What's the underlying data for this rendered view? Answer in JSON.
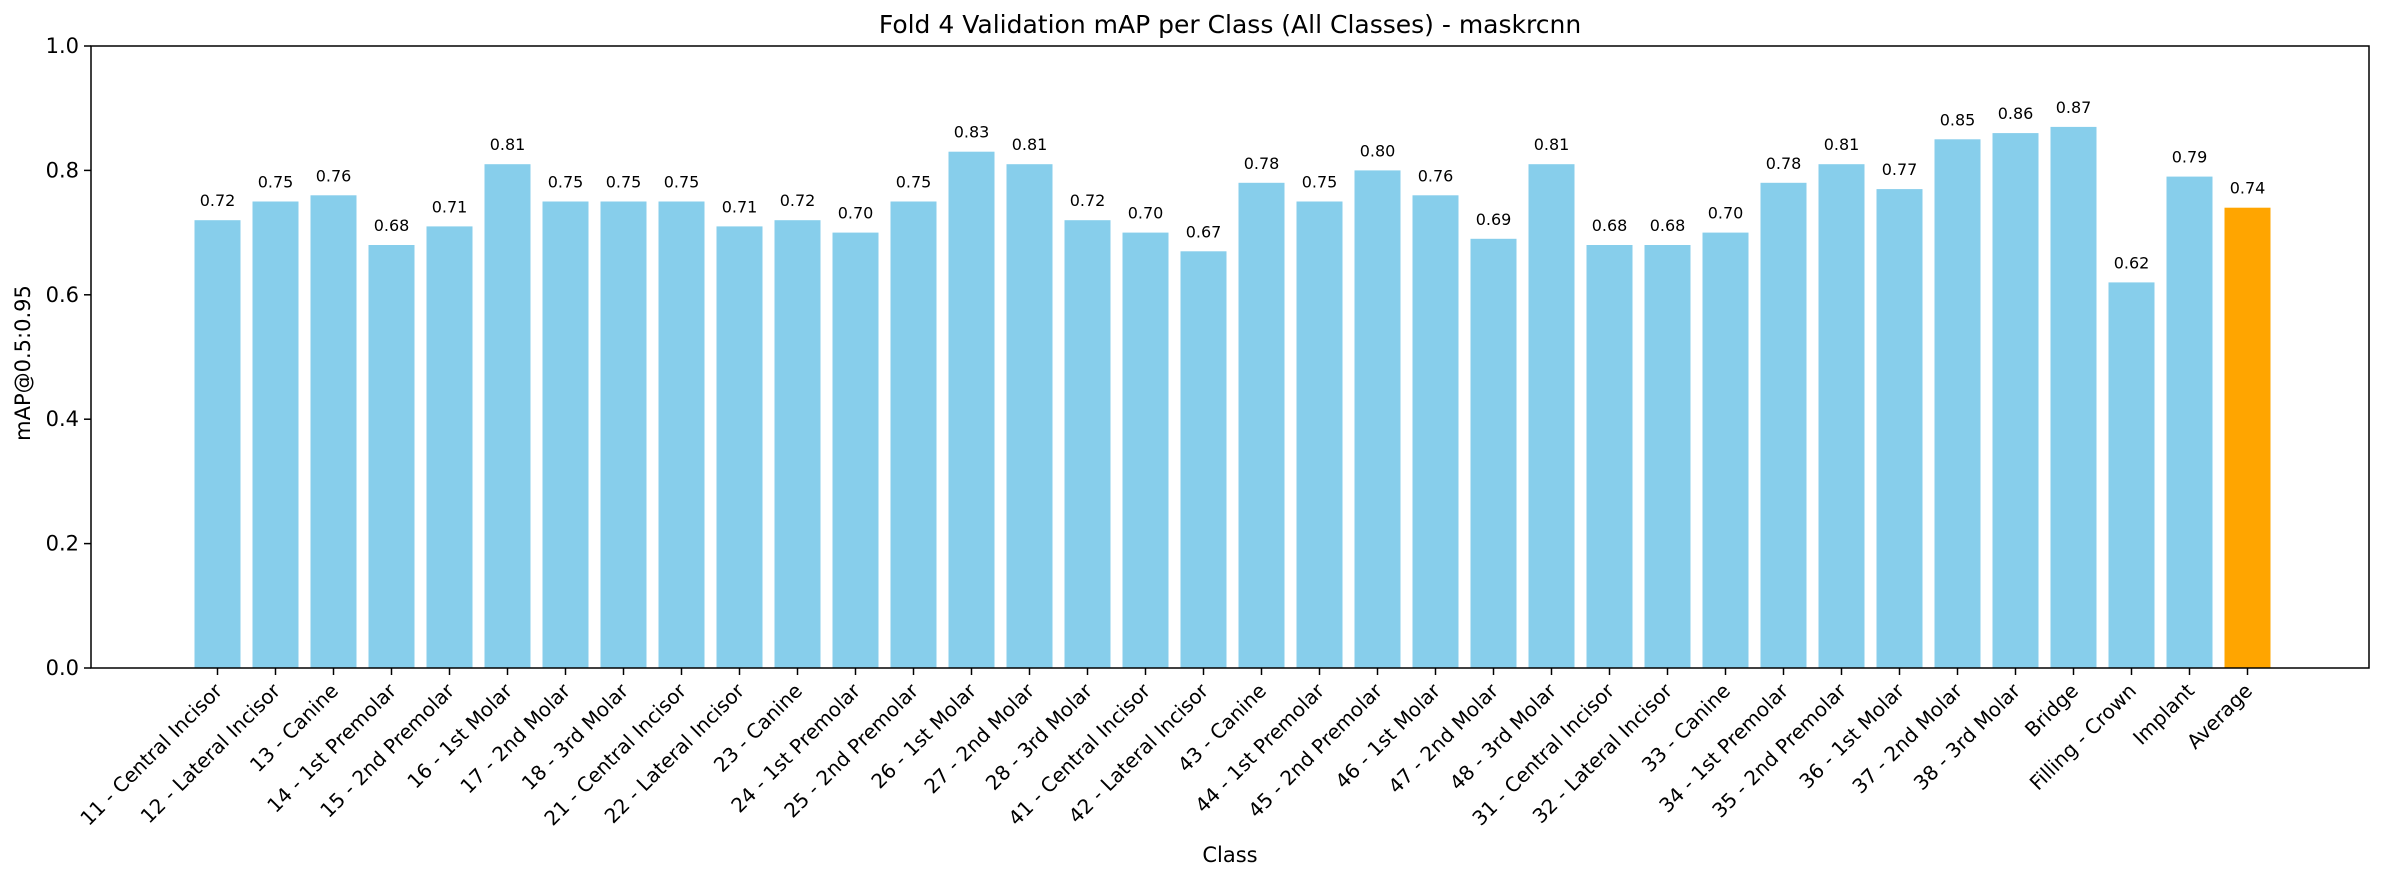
{
  "chart_data": {
    "type": "bar",
    "title": "Fold 4 Validation mAP per Class (All Classes) - maskrcnn",
    "xlabel": "Class",
    "ylabel": "mAP@0.5:0.95",
    "ylim": [
      0,
      1.0
    ],
    "yticks": [
      "0.0",
      "0.2",
      "0.4",
      "0.6",
      "0.8",
      "1.0"
    ],
    "grid": false,
    "legend": "none",
    "colors": {
      "bar": "#87ceeb",
      "average": "#ffa500"
    },
    "categories": [
      "11 - Central Incisor",
      "12 - Lateral Incisor",
      "13 - Canine",
      "14 - 1st Premolar",
      "15 - 2nd Premolar",
      "16 - 1st Molar",
      "17 - 2nd Molar",
      "18 - 3rd Molar",
      "21 - Central Incisor",
      "22 - Lateral Incisor",
      "23 - Canine",
      "24 - 1st Premolar",
      "25 - 2nd Premolar",
      "26 - 1st Molar",
      "27 - 2nd Molar",
      "28 - 3rd Molar",
      "41 - Central Incisor",
      "42 - Lateral Incisor",
      "43 - Canine",
      "44 - 1st Premolar",
      "45 - 2nd Premolar",
      "46 - 1st Molar",
      "47 - 2nd Molar",
      "48 - 3rd Molar",
      "31 - Central Incisor",
      "32 - Lateral Incisor",
      "33 - Canine",
      "34 - 1st Premolar",
      "35 - 2nd Premolar",
      "36 - 1st Molar",
      "37 - 2nd Molar",
      "38 - 3rd Molar",
      "Bridge",
      "Filling - Crown",
      "Implant",
      "Average"
    ],
    "values": [
      0.72,
      0.75,
      0.76,
      0.68,
      0.71,
      0.81,
      0.75,
      0.75,
      0.75,
      0.71,
      0.72,
      0.7,
      0.75,
      0.83,
      0.81,
      0.72,
      0.7,
      0.67,
      0.78,
      0.75,
      0.8,
      0.76,
      0.69,
      0.81,
      0.68,
      0.68,
      0.7,
      0.78,
      0.81,
      0.77,
      0.85,
      0.86,
      0.87,
      0.62,
      0.79,
      0.74
    ],
    "value_labels": [
      "0.72",
      "0.75",
      "0.76",
      "0.68",
      "0.71",
      "0.81",
      "0.75",
      "0.75",
      "0.75",
      "0.71",
      "0.72",
      "0.70",
      "0.75",
      "0.83",
      "0.81",
      "0.72",
      "0.70",
      "0.67",
      "0.78",
      "0.75",
      "0.80",
      "0.76",
      "0.69",
      "0.81",
      "0.68",
      "0.68",
      "0.70",
      "0.78",
      "0.81",
      "0.77",
      "0.85",
      "0.86",
      "0.87",
      "0.62",
      "0.79",
      "0.74"
    ],
    "highlight_index": 35
  }
}
